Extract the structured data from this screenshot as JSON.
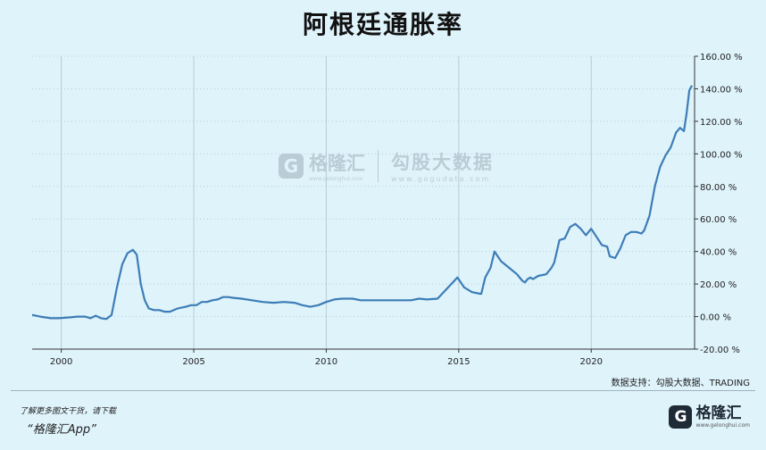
{
  "title": "阿根廷通胀率",
  "source": "数据支持：勾股大数据、TRADING",
  "footer": {
    "tip": "了解更多图文干货，请下载",
    "app": "“格隆汇App”",
    "logo_letter": "G",
    "logo_name": "格隆汇",
    "logo_url": "www.gelonghui.com"
  },
  "watermark": {
    "brand": "格隆汇",
    "brand_url": "www.gelonghui.com",
    "gg_name": "勾股大数据",
    "gg_url": "www.gogudata.com"
  },
  "chart_data": {
    "type": "line",
    "title": "阿根廷通胀率",
    "xlabel": "",
    "ylabel": "",
    "xlim": [
      1998.9,
      2023.9
    ],
    "ylim": [
      -20,
      160
    ],
    "x_ticks": [
      2000,
      2005,
      2010,
      2015,
      2020
    ],
    "y_ticks": [
      -20,
      0,
      20,
      40,
      60,
      80,
      100,
      120,
      140,
      160
    ],
    "y_tick_labels": [
      "-20.00 %",
      "0.00 %",
      "20.00 %",
      "40.00 %",
      "60.00 %",
      "80.00 %",
      "100.00 %",
      "120.00 %",
      "140.00 %",
      "160.00 %"
    ],
    "grid": true,
    "line_color": "#3d7db6",
    "series": [
      {
        "x": [
          1998.9,
          1999.2,
          1999.6,
          1999.9,
          2000.3,
          2000.6,
          2000.9,
          2001.1,
          2001.3,
          2001.5,
          2001.7,
          2001.9,
          2002.1,
          2002.3,
          2002.5,
          2002.7,
          2002.85,
          2003.0,
          2003.15,
          2003.3,
          2003.5,
          2003.7,
          2003.9,
          2004.1,
          2004.4,
          2004.7,
          2004.9,
          2005.1,
          2005.3,
          2005.5,
          2005.7,
          2005.9,
          2006.1,
          2006.3,
          2006.5,
          2006.8,
          2007.2,
          2007.6,
          2008.0,
          2008.4,
          2008.8,
          2009.1,
          2009.4,
          2009.7,
          2010.0,
          2010.3,
          2010.6,
          2011.0,
          2011.3,
          2011.7,
          2012.0,
          2012.4,
          2012.8,
          2013.2,
          2013.5,
          2013.8,
          2014.2,
          2014.95,
          2015.2,
          2015.5,
          2015.8,
          2015.85,
          2016.0,
          2016.2,
          2016.35,
          2016.6,
          2016.9,
          2017.2,
          2017.4,
          2017.5,
          2017.6,
          2017.7,
          2017.8,
          2018.0,
          2018.3,
          2018.5,
          2018.6,
          2018.7,
          2018.8,
          2019.0,
          2019.2,
          2019.4,
          2019.6,
          2019.8,
          2020.0,
          2020.2,
          2020.4,
          2020.6,
          2020.7,
          2020.9,
          2021.1,
          2021.3,
          2021.5,
          2021.7,
          2021.9,
          2022.0,
          2022.2,
          2022.4,
          2022.6,
          2022.8,
          2023.0,
          2023.2,
          2023.35,
          2023.5,
          2023.6,
          2023.7,
          2023.8
        ],
        "values": [
          1,
          0,
          -1,
          -1,
          -0.5,
          0,
          0,
          -1,
          0.5,
          -1,
          -1.5,
          1,
          18,
          32,
          39,
          41,
          38,
          20,
          10,
          5,
          4,
          4,
          3,
          3,
          5,
          6,
          7,
          7,
          9,
          9,
          10,
          10.5,
          12,
          12,
          11.5,
          11,
          10,
          9,
          8.5,
          9,
          8.5,
          7,
          6,
          7,
          9,
          10.5,
          11,
          11,
          10,
          10,
          10,
          10,
          10,
          10,
          11,
          10.5,
          11,
          24,
          18,
          15,
          14,
          14,
          24,
          30,
          40,
          34,
          30,
          26,
          22,
          21,
          23,
          24,
          23,
          25,
          26,
          30,
          33,
          40,
          47,
          48,
          55,
          57,
          54,
          50,
          54,
          49,
          44,
          43,
          37,
          36,
          42,
          50,
          52,
          52,
          51,
          53,
          62,
          80,
          92,
          99,
          104,
          113,
          116,
          114,
          125,
          139,
          142
        ]
      }
    ]
  }
}
